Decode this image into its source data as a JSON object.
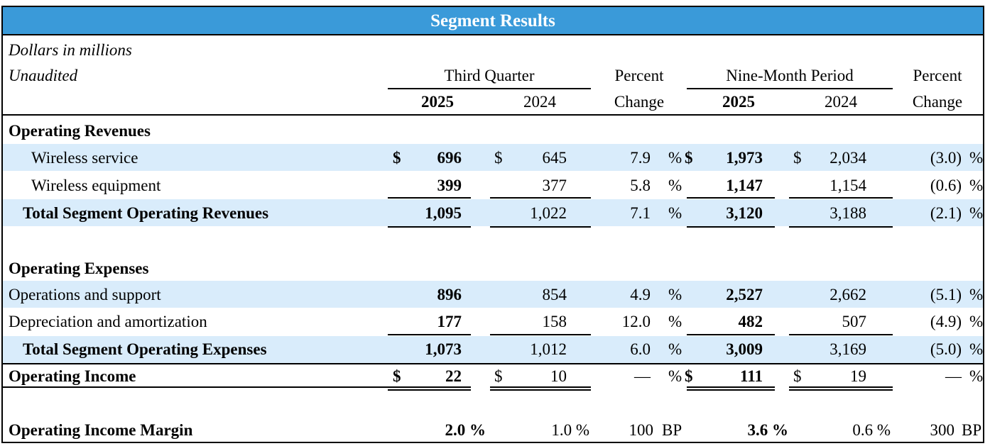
{
  "title": "Segment Results",
  "meta": {
    "units": "Dollars in millions",
    "audit": "Unaudited"
  },
  "headers": {
    "q_group": "Third Quarter",
    "nm_group": "Nine-Month Period",
    "pct1": "Percent",
    "pct2": "Change",
    "year_cur": "2025",
    "year_prev": "2024"
  },
  "sections": {
    "revenues": "Operating Revenues",
    "expenses": "Operating Expenses"
  },
  "symbols": {
    "dollar": "$",
    "percent": "%",
    "bp": "BP"
  },
  "rows": [
    {
      "label": "Wireless service",
      "q25": "696",
      "q24": "645",
      "pq": "7.9",
      "n25": "1,973",
      "n24": "2,034",
      "pn": "(3.0)"
    },
    {
      "label": "Wireless equipment",
      "q25": "399",
      "q24": "377",
      "pq": "5.8",
      "n25": "1,147",
      "n24": "1,154",
      "pn": "(0.6)"
    },
    {
      "label": "Total Segment Operating Revenues",
      "q25": "1,095",
      "q24": "1,022",
      "pq": "7.1",
      "n25": "3,120",
      "n24": "3,188",
      "pn": "(2.1)"
    },
    {
      "label": "Operations and support",
      "q25": "896",
      "q24": "854",
      "pq": "4.9",
      "n25": "2,527",
      "n24": "2,662",
      "pn": "(5.1)"
    },
    {
      "label": "Depreciation and amortization",
      "q25": "177",
      "q24": "158",
      "pq": "12.0",
      "n25": "482",
      "n24": "507",
      "pn": "(4.9)"
    },
    {
      "label": "Total Segment Operating Expenses",
      "q25": "1,073",
      "q24": "1,012",
      "pq": "6.0",
      "n25": "3,009",
      "n24": "3,169",
      "pn": "(5.0)"
    },
    {
      "label": "Operating Income",
      "q25": "22",
      "q24": "10",
      "pq": "—",
      "n25": "111",
      "n24": "19",
      "pn": "—"
    }
  ],
  "margin": {
    "label": "Operating Income Margin",
    "q25": "2.0 %",
    "q24": "1.0 %",
    "pq": "100",
    "n25": "3.6 %",
    "n24": "0.6 %",
    "pn": "300"
  }
}
